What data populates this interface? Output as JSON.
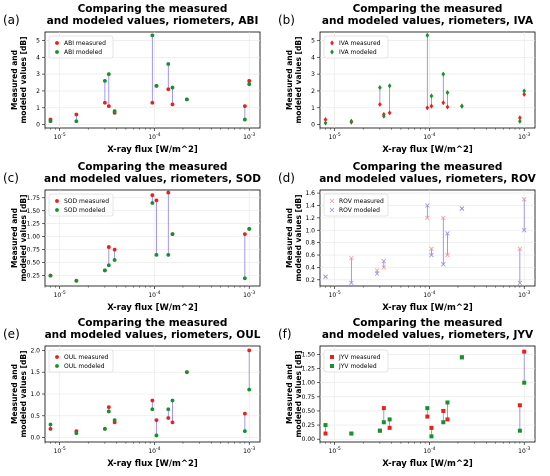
{
  "colors": {
    "measured": "#e8211d",
    "modeled": "#159130",
    "connector": "#8a7fe6",
    "rov_measured": "#f09aa0",
    "rov_modeled": "#9b8fd8",
    "grid": "#e6e6e6"
  },
  "chart_data": [
    {
      "panel_label": "(a)",
      "type": "scatter",
      "title": "Comparing the measured\nand modeled values, riometers, ABI",
      "xlabel": "X-ray flux [W/m^2]",
      "ylabel": "Measured and\nmodeled values [dB]",
      "xscale": "log",
      "xlim": [
        7e-06,
        0.0013
      ],
      "ylim": [
        -0.2,
        5.5
      ],
      "yticks": [
        0,
        1,
        2,
        3,
        4,
        5
      ],
      "xticks": [
        "10^-5",
        "10^-4",
        "10^-3"
      ],
      "marker": "circle",
      "legend": [
        "ABI measured",
        "ABI modeled"
      ],
      "series": [
        {
          "name": "ABI measured",
          "x": [
            8e-06,
            1.5e-05,
            3e-05,
            3.3e-05,
            3.8e-05,
            9.5e-05,
            0.000105,
            0.00014,
            0.000155,
            0.00022,
            0.0009,
            0.001
          ],
          "y": [
            0.3,
            0.6,
            1.3,
            1.1,
            0.7,
            1.3,
            2.3,
            2.1,
            1.2,
            1.5,
            1.1,
            2.6
          ]
        },
        {
          "name": "ABI modeled",
          "x": [
            8e-06,
            1.5e-05,
            3e-05,
            3.3e-05,
            3.8e-05,
            9.5e-05,
            0.000105,
            0.00014,
            0.000155,
            0.00022,
            0.0009,
            0.001
          ],
          "y": [
            0.2,
            0.2,
            2.6,
            3.0,
            0.8,
            5.3,
            2.3,
            3.6,
            2.2,
            1.5,
            0.3,
            2.4
          ]
        }
      ]
    },
    {
      "panel_label": "(b)",
      "type": "scatter",
      "title": "Comparing the measured\nand modeled values, riometers, IVA",
      "xlabel": "X-ray flux [W/m^2]",
      "ylabel": "Measured and\nmodeled values [dB]",
      "xscale": "log",
      "xlim": [
        7e-06,
        0.0013
      ],
      "ylim": [
        -0.2,
        5.5
      ],
      "yticks": [
        0,
        1,
        2,
        3,
        4,
        5
      ],
      "xticks": [
        "10^-5",
        "10^-4",
        "10^-3"
      ],
      "marker": "diamond",
      "legend": [
        "IVA measured",
        "IVA modeled"
      ],
      "series": [
        {
          "name": "IVA measured",
          "x": [
            8e-06,
            1.5e-05,
            3e-05,
            3.3e-05,
            3.8e-05,
            9.5e-05,
            0.000105,
            0.00014,
            0.000155,
            0.00022,
            0.0009,
            0.001
          ],
          "y": [
            0.3,
            0.15,
            1.2,
            0.6,
            0.7,
            1.0,
            1.1,
            1.3,
            1.05,
            1.1,
            0.4,
            1.8
          ]
        },
        {
          "name": "IVA modeled",
          "x": [
            8e-06,
            1.5e-05,
            3e-05,
            3.3e-05,
            3.8e-05,
            9.5e-05,
            0.000105,
            0.00014,
            0.000155,
            0.00022,
            0.0009,
            0.001
          ],
          "y": [
            0.1,
            0.2,
            2.2,
            0.5,
            2.3,
            5.3,
            1.7,
            3.0,
            1.9,
            1.1,
            0.2,
            2.0
          ]
        }
      ]
    },
    {
      "panel_label": "(c)",
      "type": "scatter",
      "title": "Comparing the measured\nand modeled values, riometers, SOD",
      "xlabel": "X-ray flux [W/m^2]",
      "ylabel": "Measured and\nmodeled values [dB]",
      "xscale": "log",
      "xlim": [
        7e-06,
        0.0013
      ],
      "ylim": [
        0.05,
        1.9
      ],
      "yticks": [
        0.25,
        0.5,
        0.75,
        1.0,
        1.25,
        1.5,
        1.75
      ],
      "xticks": [
        "10^-5",
        "10^-4",
        "10^-3"
      ],
      "marker": "circle",
      "legend": [
        "SOD measured",
        "SOD modeled"
      ],
      "series": [
        {
          "name": "SOD measured",
          "x": [
            8e-06,
            1.5e-05,
            3e-05,
            3.3e-05,
            3.8e-05,
            9.5e-05,
            0.000105,
            0.00014,
            0.000155,
            0.0009,
            0.001
          ],
          "y": [
            0.25,
            0.15,
            0.35,
            0.8,
            0.75,
            1.8,
            1.7,
            1.85,
            1.05,
            1.05,
            1.15
          ]
        },
        {
          "name": "SOD modeled",
          "x": [
            8e-06,
            1.5e-05,
            3e-05,
            3.3e-05,
            3.8e-05,
            9.5e-05,
            0.000105,
            0.00014,
            0.000155,
            0.0009,
            0.001
          ],
          "y": [
            0.25,
            0.15,
            0.35,
            0.45,
            0.55,
            1.65,
            0.65,
            0.65,
            1.05,
            0.2,
            1.15
          ]
        }
      ]
    },
    {
      "panel_label": "(d)",
      "type": "scatter",
      "title": "Comparing the measured\nand modeled values, riometers, ROV",
      "xlabel": "X-ray flux [W/m^2]",
      "ylabel": "Measured and\nmodeled values [dB]",
      "xscale": "log",
      "xlim": [
        7e-06,
        0.0013
      ],
      "ylim": [
        0.1,
        1.65
      ],
      "yticks": [
        0.2,
        0.4,
        0.6,
        0.8,
        1.0,
        1.2,
        1.4,
        1.6
      ],
      "xticks": [
        "10^-5",
        "10^-4",
        "10^-3"
      ],
      "marker": "x",
      "legend": [
        "ROV measured",
        "ROV modeled"
      ],
      "series": [
        {
          "name": "ROV measured",
          "x": [
            8e-06,
            1.5e-05,
            2.8e-05,
            3.3e-05,
            9.5e-05,
            0.000105,
            0.00014,
            0.000155,
            0.00022,
            0.0009,
            0.001
          ],
          "y": [
            0.25,
            0.55,
            0.35,
            0.4,
            1.2,
            0.7,
            1.2,
            0.6,
            1.35,
            0.7,
            1.5
          ]
        },
        {
          "name": "ROV modeled",
          "x": [
            8e-06,
            1.5e-05,
            2.8e-05,
            3.3e-05,
            9.5e-05,
            0.000105,
            0.00014,
            0.000155,
            0.00022,
            0.0009,
            0.001
          ],
          "y": [
            0.25,
            0.15,
            0.3,
            0.5,
            1.4,
            0.6,
            0.45,
            0.95,
            1.35,
            0.15,
            1.0
          ]
        }
      ]
    },
    {
      "panel_label": "(e)",
      "type": "scatter",
      "title": "Comparing the measured\nand modeled values, riometers, OUL",
      "xlabel": "X-ray flux [W/m^2]",
      "ylabel": "Measured and\nmodeled values [dB]",
      "xscale": "log",
      "xlim": [
        7e-06,
        0.0013
      ],
      "ylim": [
        -0.1,
        2.1
      ],
      "yticks": [
        0.0,
        0.5,
        1.0,
        1.5,
        2.0
      ],
      "xticks": [
        "10^-5",
        "10^-4",
        "10^-3"
      ],
      "marker": "circle",
      "legend": [
        "OUL measured",
        "OUL modeled"
      ],
      "series": [
        {
          "name": "OUL measured",
          "x": [
            8e-06,
            1.5e-05,
            3e-05,
            3.3e-05,
            3.8e-05,
            9.5e-05,
            0.000105,
            0.00014,
            0.000155,
            0.00022,
            0.0009,
            0.001
          ],
          "y": [
            0.2,
            0.15,
            0.2,
            0.7,
            0.35,
            0.85,
            0.4,
            0.45,
            0.35,
            1.5,
            0.55,
            2.0
          ]
        },
        {
          "name": "OUL modeled",
          "x": [
            8e-06,
            1.5e-05,
            3e-05,
            3.3e-05,
            3.8e-05,
            9.5e-05,
            0.000105,
            0.00014,
            0.000155,
            0.00022,
            0.0009,
            0.001
          ],
          "y": [
            0.3,
            0.1,
            0.2,
            0.6,
            0.4,
            0.65,
            0.05,
            0.65,
            0.85,
            1.5,
            0.15,
            1.1
          ]
        }
      ]
    },
    {
      "panel_label": "(f)",
      "type": "scatter",
      "title": "Comparing the measured\nand modeled values, riometers, JYV",
      "xlabel": "X-ray flux [W/m^2]",
      "ylabel": "Measured and\nmodeled values [dB]",
      "xscale": "log",
      "xlim": [
        7e-06,
        0.0013
      ],
      "ylim": [
        -0.05,
        1.65
      ],
      "yticks": [
        0.0,
        0.25,
        0.5,
        0.75,
        1.0,
        1.25,
        1.5
      ],
      "xticks": [
        "10^-5",
        "10^-4",
        "10^-3"
      ],
      "marker": "square",
      "legend": [
        "JYV measured",
        "JYV modeled"
      ],
      "series": [
        {
          "name": "JYV measured",
          "x": [
            8e-06,
            1.5e-05,
            3e-05,
            3.3e-05,
            3.8e-05,
            9.5e-05,
            0.000105,
            0.00014,
            0.000155,
            0.00022,
            0.0009,
            0.001
          ],
          "y": [
            0.1,
            0.1,
            0.15,
            0.55,
            0.2,
            0.4,
            0.2,
            0.5,
            0.35,
            1.45,
            0.6,
            1.55
          ]
        },
        {
          "name": "JYV modeled",
          "x": [
            8e-06,
            1.5e-05,
            3e-05,
            3.3e-05,
            3.8e-05,
            9.5e-05,
            0.000105,
            0.00014,
            0.000155,
            0.00022,
            0.0009,
            0.001
          ],
          "y": [
            0.25,
            0.1,
            0.15,
            0.3,
            0.35,
            0.55,
            0.05,
            0.3,
            0.65,
            1.45,
            0.15,
            1.0
          ]
        }
      ]
    }
  ]
}
